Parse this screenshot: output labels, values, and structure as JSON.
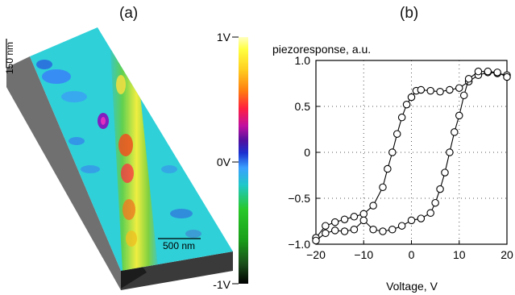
{
  "panels": {
    "a_label": "(a)",
    "b_label": "(b)"
  },
  "afm": {
    "height_scale_label": "150 nm",
    "length_scale_label": "500 nm",
    "colorbar": {
      "top_label": "1V",
      "mid_label": "0V",
      "bottom_label": "-1V",
      "colors": [
        "#000000",
        "#1a4d1a",
        "#1aa01a",
        "#28c828",
        "#20c8c8",
        "#3aa0ff",
        "#1a30d0",
        "#5010a0",
        "#c010a0",
        "#ff2040",
        "#ff7a10",
        "#ffd020",
        "#ffff40",
        "#ffffc0"
      ]
    }
  },
  "chart_data": {
    "type": "scatter",
    "title": "",
    "ylabel": "piezoresponse, a.u.",
    "xlabel": "Voltage, V",
    "xlim": [
      -20,
      20
    ],
    "ylim": [
      -1.0,
      1.0
    ],
    "xticks": [
      -20,
      -10,
      0,
      10,
      20
    ],
    "xtick_labels": [
      "−20",
      "−10",
      "0",
      "10",
      "20"
    ],
    "yticks": [
      -1.0,
      -0.5,
      0,
      0.5,
      1.0
    ],
    "ytick_labels": [
      "−1.0",
      "−0.5",
      "0",
      "0.5",
      "1.0"
    ],
    "grid": "dotted",
    "marker": "open-circle",
    "series": [
      {
        "x": [
          -20,
          -18,
          -16,
          -14,
          -12,
          -10,
          -8,
          -6,
          -5,
          -4,
          -3,
          -2,
          -1,
          0,
          1,
          2,
          4,
          6,
          8,
          10,
          12,
          14,
          16,
          18,
          20
        ],
        "y": [
          -0.93,
          -0.8,
          -0.76,
          -0.73,
          -0.7,
          -0.67,
          -0.58,
          -0.38,
          -0.18,
          0.0,
          0.2,
          0.38,
          0.52,
          0.6,
          0.67,
          0.68,
          0.67,
          0.66,
          0.68,
          0.7,
          0.77,
          0.84,
          0.87,
          0.86,
          0.84
        ]
      },
      {
        "x": [
          20,
          18,
          16,
          14,
          12,
          11,
          10,
          9,
          8,
          7,
          6,
          5,
          4,
          2,
          0,
          -2,
          -4,
          -6,
          -8,
          -10,
          -12,
          -14,
          -16,
          -18,
          -20
        ],
        "y": [
          0.82,
          0.87,
          0.88,
          0.88,
          0.8,
          0.62,
          0.4,
          0.22,
          0.0,
          -0.22,
          -0.4,
          -0.55,
          -0.66,
          -0.72,
          -0.74,
          -0.8,
          -0.84,
          -0.86,
          -0.84,
          -0.74,
          -0.84,
          -0.86,
          -0.85,
          -0.88,
          -0.96
        ]
      }
    ]
  }
}
